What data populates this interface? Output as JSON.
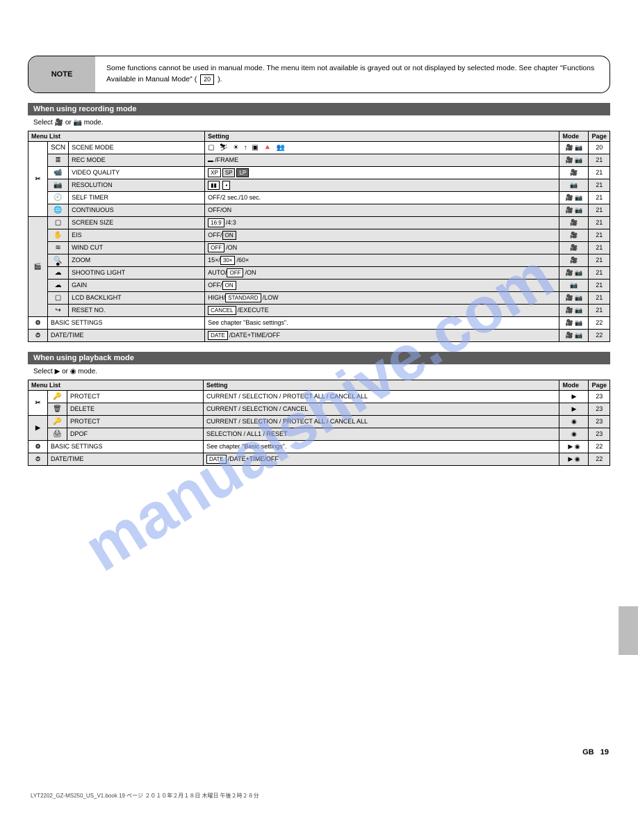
{
  "note": {
    "label": "NOTE",
    "text_before": "Some functions cannot be used in manual mode.\nThe menu item not available is grayed out or not displayed by selected mode. See chapter ",
    "text_mid": "\"Functions Available in Manual Mode\"",
    "text_ref": " ( ",
    "text_page": "20",
    "text_after": " )."
  },
  "sections": {
    "rec": {
      "title": "When using recording mode",
      "mode_prefix": "Select ",
      "mode_or": " or ",
      "mode_suffix": " mode.",
      "header": {
        "menu": "Menu List",
        "setting": "Setting",
        "mode": "Mode",
        "page": "Page"
      },
      "groups": [
        {
          "group_icon": "✂",
          "rows": [
            {
              "iconText": "SCN",
              "item": "SCENE MODE",
              "setting_type": "glyphs",
              "setting_glyphs": "▢ ⛷ ☀ ↑ ▣ 🔺 👥",
              "mode": "vs",
              "page": "20"
            },
            {
              "iconText": "≣",
              "item": "REC MODE",
              "setting_type": "box",
              "setting_box": " ",
              "setting_boxclass": "dk",
              "setting_after": "/FRAME",
              "mode": "vs",
              "page": "21",
              "shade": true
            },
            {
              "iconText": "📹",
              "item": "VIDEO QUALITY",
              "setting_type": "triple",
              "setting_triple": [
                "XP",
                "SP",
                "LP"
              ],
              "mode": "v",
              "page": "21"
            },
            {
              "iconText": "📷",
              "item": "RESOLUTION",
              "setting_type": "twobox",
              "setting_two": [
                "▮▮",
                "▪"
              ],
              "mode": "s",
              "page": "21",
              "shade": true
            },
            {
              "iconText": "🕘",
              "item": "SELF TIMER",
              "setting_text": "OFF/2 sec./10 sec.",
              "mode": "vs",
              "page": "21"
            },
            {
              "iconText": "🌐",
              "item": "CONTINUOUS",
              "setting_text": "OFF/ON",
              "mode": "vs",
              "page": "21",
              "shade": true
            }
          ]
        },
        {
          "group_icon": "🎬",
          "shade_group": true,
          "rows": [
            {
              "iconText": "▢",
              "item": "SCREEN SIZE",
              "setting_type": "leadbox",
              "setting_box": "16:9",
              "setting_after": "/4:3",
              "mode": "v",
              "page": "21"
            },
            {
              "iconText": "✋",
              "item": "EIS",
              "setting_type": "midbox",
              "setting_before": "OFF/",
              "setting_box": "ON",
              "setting_boxclass": "dk",
              "mode": "v",
              "page": "21",
              "shade": true
            },
            {
              "iconText": "≋",
              "item": "WIND CUT",
              "setting_type": "leadbox",
              "setting_box": "OFF",
              "setting_after": "/ON",
              "mode": "v",
              "page": "21"
            },
            {
              "iconText": "🔍",
              "item": "ZOOM",
              "setting_type": "midbox",
              "setting_before": "15×/",
              "setting_box": "30×",
              "setting_after": "/60×",
              "mode": "v",
              "page": "21",
              "shade": true
            },
            {
              "iconText": "☁",
              "item": "SHOOTING LIGHT",
              "setting_type": "midbox",
              "setting_before": "AUTO/",
              "setting_box": "OFF",
              "setting_after": "/ON",
              "mode": "vs",
              "page": "21"
            },
            {
              "iconText": "☁",
              "item": "GAIN",
              "setting_type": "midbox",
              "setting_before": "OFF/",
              "setting_box": "ON",
              "mode": "s",
              "page": "21",
              "shade": true
            },
            {
              "iconText": "▢",
              "item": "LCD BACKLIGHT",
              "setting_type": "midbox",
              "setting_before": "HIGH/",
              "setting_box": "STANDARD",
              "setting_after": "/LOW",
              "mode": "vs",
              "page": "21"
            },
            {
              "iconText": "↪",
              "item": "RESET NO.",
              "setting_type": "leadbox",
              "setting_box": "CANCEL",
              "setting_after": "/EXECUTE",
              "mode": "vs",
              "page": "21",
              "shade": true
            }
          ]
        }
      ],
      "tail": [
        {
          "icon": "⚙",
          "item": "BASIC SETTINGS",
          "setting_text": "See chapter \"Basic settings\".",
          "mode": "vs",
          "page": "22"
        },
        {
          "icon": "⏱",
          "item": "DATE/TIME",
          "setting_type": "leadbox",
          "setting_box": "DATE",
          "setting_after": "/DATE+TIME/OFF",
          "mode": "vs",
          "page": "22",
          "shade": true
        }
      ]
    },
    "play": {
      "title": "When using playback mode",
      "mode_prefix": "Select ",
      "mode_or": " or ",
      "mode_suffix": " mode.",
      "header": {
        "menu": "Menu List",
        "setting": "Setting",
        "mode": "Mode",
        "page": "Page"
      },
      "groups": [
        {
          "group_icon": "✂",
          "rows": [
            {
              "iconText": "🔑",
              "item": "PROTECT",
              "setting_text": "CURRENT / SELECTION / PROTECT ALL / CANCEL ALL",
              "mode": "pv",
              "page": "23"
            },
            {
              "iconText": "🗑",
              "item": "DELETE",
              "setting_text": "CURRENT / SELECTION / CANCEL",
              "mode": "pv",
              "page": "23",
              "shade": true
            }
          ]
        },
        {
          "group_icon": "▶",
          "shade_group": true,
          "rows": [
            {
              "iconText": "🔑",
              "item": "PROTECT",
              "setting_text": "CURRENT / SELECTION / PROTECT ALL / CANCEL ALL",
              "mode": "ps",
              "page": "23"
            },
            {
              "iconText": "🖨",
              "item": "DPOF",
              "setting_text": "SELECTION / ALL1 / RESET",
              "mode": "ps",
              "page": "23",
              "shade": true
            }
          ]
        }
      ],
      "tail": [
        {
          "icon": "⚙",
          "item": "BASIC SETTINGS",
          "setting_text": "See chapter \"Basic settings\".",
          "mode": "pvs",
          "page": "22"
        },
        {
          "icon": "⏱",
          "item": "DATE/TIME",
          "setting_type": "leadbox",
          "setting_box": "DATE",
          "setting_after": "/DATE+TIME/OFF",
          "mode": "pvs",
          "page": "22",
          "shade": true
        }
      ]
    }
  },
  "footer": {
    "left": "LYT2202_GZ-MS250_US_V1.book  19 ページ   ２０１０年２月１８日 木曜日 午後２時２８分",
    "right_label": "GB",
    "right_page": "19"
  },
  "watermark": "manualshive.com",
  "mode_icons": {
    "v": "🎥",
    "s": "📷",
    "vs": "🎥 📷",
    "pv": "▶",
    "ps": "◉",
    "pvs": "▶ ◉"
  }
}
